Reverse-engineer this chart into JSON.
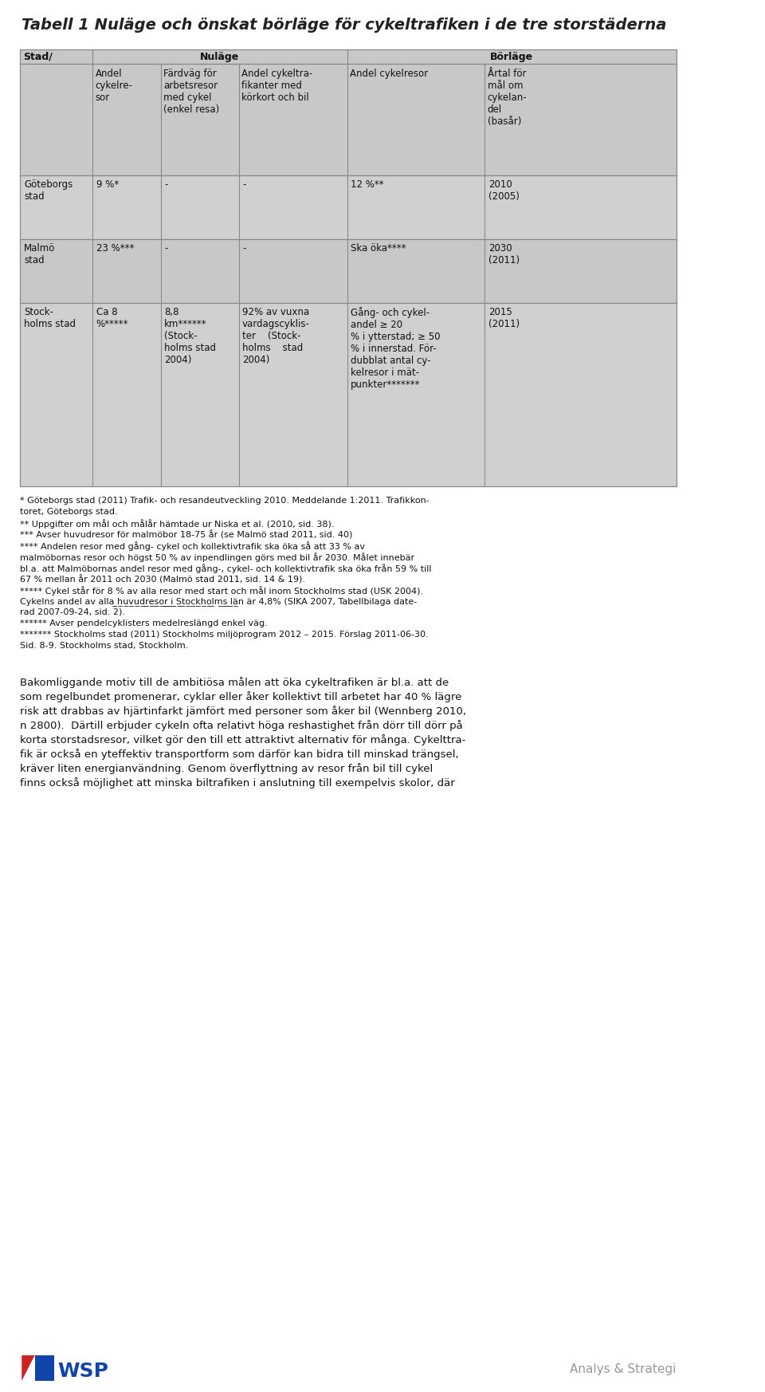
{
  "title": "Tabell 1 Nuläge och önskat börläge för cykeltrafiken i de tre storstäderna",
  "bg_color": "#ffffff",
  "table_bg": "#c8c8c8",
  "table_header_bg": "#c8c8c8",
  "row_bg_light": "#d8d8d8",
  "row_bg_dark": "#c0c0c0",
  "header1_row1": [
    "Stad/",
    "Nuläge",
    "",
    "",
    "Börläge",
    ""
  ],
  "header2": [
    "",
    "Andel cykelre-\nsor",
    "Färdväg för\narbetsresor\nmed cykel\n(enkel resa)",
    "Andel cykeltra-\nfikanter med\nkörkort och bil",
    "Andel cykelresor",
    "Årtal för\nmål om\ncykelan-\ndel\n(basår)"
  ],
  "rows": [
    [
      "Göteborgs\nstad",
      "9 %*",
      "-",
      "-",
      "12 %**",
      "2010\n(2005)"
    ],
    [
      "Malmö\nstad",
      "23 %***",
      "-",
      "-",
      "Ska öka****",
      "2030\n(2011)"
    ],
    [
      "Stock-\nholms stad",
      "Ca 8\n%*****",
      "8,8\nkm******\n(Stock-\nholms stad\n2004)",
      "92% av vuxna\nvardagscyklis-\nter    (Stock-\nholms    stad\n2004)",
      "Gång- och cykel-\nandel ≥ 20\n% i ytterstad; ≥ 50\n% i innerstad. För-\ndubblat antal cy-\nkelresor i mät-\npunkter*******",
      "2015\n(2011)"
    ]
  ],
  "footnote": "* Göteborgs stad (2011) Trafik- och resandeutveckling 2010. Meddelande 1:2011. Trafikkon-\ntoret, Göteborgs stad.\n** Uppgifter om mål och målår hämtade ur Niska et al. (2010, sid. 38).\n*** Avser huvudresor för malmöbor 18-75 år (se Malmö stad 2011, sid. 40)\n**** Andelen resor med gång- cykel och kollektivtrafik ska öka så att 33 % av\nmalmöbornas resor och högst 50 % av inpendlingen görs med bil år 2030. Målet innebär\nbl.a. att Malmöbornas andel resor med gång-, cykel- och kollektivtrafik ska öka från 59 % till\n67 % mellan år 2011 och 2030 (Malmö stad 2011, sid. 14 & 19).\n***** Cykel står för 8 % av alla resor med start och mål inom Stockholms stad (USK 2004).\nCykelns andel av alla huvudresor i Stockholms län är 4,8% (SIKA 2007, Tabellbilaga date-\nrad 2007-09-24, sid. 2).\n****** Avser pendelcyklisters medelreslängd enkel väg.\n******* Stockholms stad (2011) Stockholms miljöprogram 2012 – 2015. Förslag 2011-06-30.\nSid. 8-9. Stockholms stad, Stockholm.",
  "body_text": "Bakomliggande motiv till de ambitiösa målen att öka cykeltrafiken är bl.a. att de\nsom regelbundet promenerar, cyklar eller åker kollektivt till arbetet har 40 % lägre\nrisk att drabbas av hjärtinfarkt jämfört med personer som åker bil (Wennberg 2010,\nn 2800).  Därtill erbjuder cykeln ofta relativt höga reshastighet från dörr till dörr på\nkorta storstadsresor, vilket gör den till ett attraktivt alternativ för många. Cykelttra-\nfik är också en yteffektiv transportform som därför kan bidra till minskad trängsel,\nkräver liten energianvändning. Genom överflyttning av resor från bil till cykel\nfinns också möjlighet att minska biltrafiken i anslutning till exempelvis skolor, där"
}
